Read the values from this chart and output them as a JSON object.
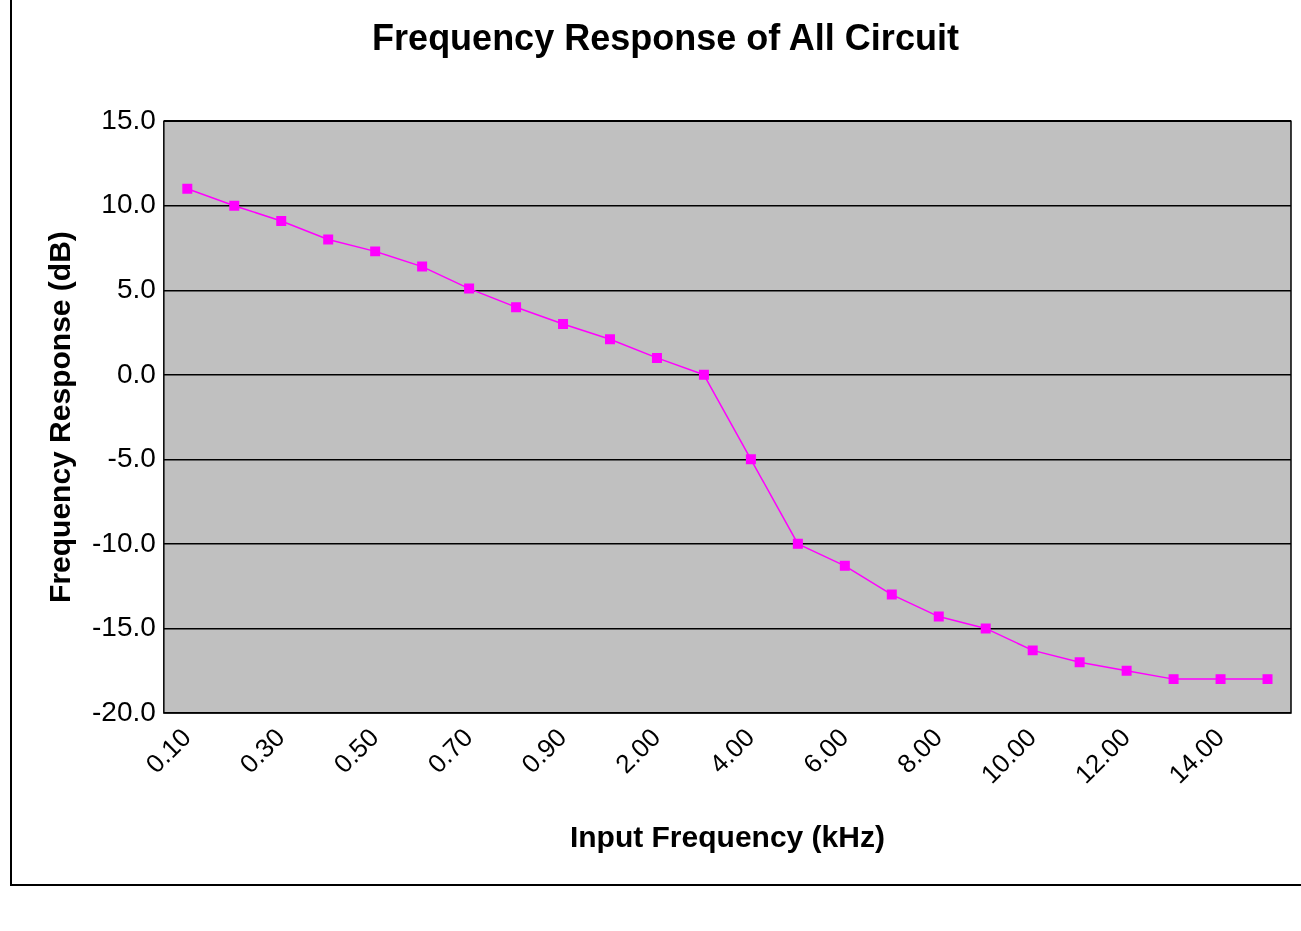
{
  "chart_data": {
    "type": "line",
    "title": "Frequency Response of All Circuit",
    "xlabel": "Input Frequency (kHz)",
    "ylabel": "Frequency Response (dB)",
    "categories": [
      "0.10",
      null,
      "0.30",
      null,
      "0.50",
      null,
      "0.70",
      null,
      "0.90",
      null,
      "2.00",
      null,
      "4.00",
      null,
      "6.00",
      null,
      "8.00",
      null,
      "10.00",
      null,
      "12.00",
      null,
      "14.00",
      null
    ],
    "series": [
      {
        "color": "#ff00ff",
        "values": [
          11,
          10,
          9.1,
          8,
          7.3,
          6.4,
          5.1,
          4,
          3,
          2.1,
          1,
          0,
          -5,
          -10,
          -11.3,
          -13,
          -14.3,
          -15,
          -16.3,
          -17,
          -17.5,
          -18,
          -18,
          -18
        ]
      }
    ],
    "ylim": [
      -20,
      15
    ],
    "yticks": [
      {
        "value": -20,
        "label": "-20.0"
      },
      {
        "value": -15,
        "label": "-15.0"
      },
      {
        "value": -10,
        "label": "-10.0"
      },
      {
        "value": -5,
        "label": "-5.0"
      },
      {
        "value": 0,
        "label": "0.0"
      },
      {
        "value": 5,
        "label": "5.0"
      },
      {
        "value": 10,
        "label": "10.0"
      },
      {
        "value": 15,
        "label": "15.0"
      }
    ],
    "grid": "y",
    "marker": "square",
    "line_style": "solid"
  }
}
